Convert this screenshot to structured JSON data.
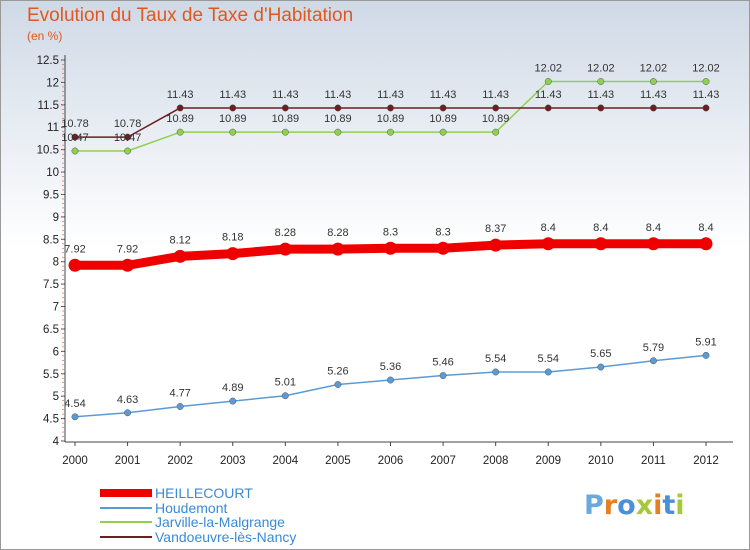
{
  "header": {
    "title": "Evolution du Taux de Taxe d'Habitation",
    "unit": "(en %)"
  },
  "logo": {
    "letters": [
      "P",
      "r",
      "o",
      "x",
      "i",
      "t",
      "i"
    ],
    "colors": [
      "#6aa9dc",
      "#e67e22",
      "#4a90d9",
      "#a5c93a",
      "#e67e22",
      "#4a90d9",
      "#a5c93a"
    ]
  },
  "chart_data": {
    "type": "line",
    "title": "Evolution du Taux de Taxe d'Habitation",
    "ylabel": "(en %)",
    "xlabel": "",
    "x": [
      "2000",
      "2001",
      "2002",
      "2003",
      "2004",
      "2005",
      "2006",
      "2007",
      "2008",
      "2009",
      "2010",
      "2011",
      "2012"
    ],
    "ylim": [
      4,
      12.5
    ],
    "yticks": [
      "4",
      "4.5",
      "5",
      "5.5",
      "6",
      "6.5",
      "7",
      "7.5",
      "8",
      "8.5",
      "9",
      "9.5",
      "10",
      "10.5",
      "11",
      "11.5",
      "12",
      "12.5"
    ],
    "grid": false,
    "legend_position": "bottom-left",
    "series": [
      {
        "name": "HEILLECOURT",
        "color": "#ee0000",
        "values": [
          7.92,
          7.92,
          8.12,
          8.18,
          8.28,
          8.28,
          8.3,
          8.3,
          8.37,
          8.4,
          8.4,
          8.4,
          8.4
        ],
        "labels": [
          "7.92",
          "7.92",
          "8.12",
          "8.18",
          "8.28",
          "8.28",
          "8.3",
          "8.3",
          "8.37",
          "8.4",
          "8.4",
          "8.4",
          "8.4"
        ]
      },
      {
        "name": "Houdemont",
        "color": "#5b9bd5",
        "values": [
          4.54,
          4.63,
          4.77,
          4.89,
          5.01,
          5.26,
          5.36,
          5.46,
          5.54,
          5.54,
          5.65,
          5.79,
          5.91
        ],
        "labels": [
          "4.54",
          "4.63",
          "4.77",
          "4.89",
          "5.01",
          "5.26",
          "5.36",
          "5.46",
          "5.54",
          "5.54",
          "5.65",
          "5.79",
          "5.91"
        ]
      },
      {
        "name": "Jarville-la-Malgrange",
        "color": "#8fd14f",
        "values": [
          10.47,
          10.47,
          10.89,
          10.89,
          10.89,
          10.89,
          10.89,
          10.89,
          10.89,
          12.02,
          12.02,
          12.02,
          12.02
        ],
        "labels": [
          "10.47",
          "10.47",
          "10.89",
          "10.89",
          "10.89",
          "10.89",
          "10.89",
          "10.89",
          "10.89",
          "12.02",
          "12.02",
          "12.02",
          "12.02"
        ]
      },
      {
        "name": "Vandoeuvre-lès-Nancy",
        "color": "#6b1f1f",
        "values": [
          10.78,
          10.78,
          11.43,
          11.43,
          11.43,
          11.43,
          11.43,
          11.43,
          11.43,
          11.43,
          11.43,
          11.43,
          11.43
        ],
        "labels": [
          "10.78",
          "10.78",
          "11.43",
          "11.43",
          "11.43",
          "11.43",
          "11.43",
          "11.43",
          "11.43",
          "11.43",
          "11.43",
          "11.43",
          "11.43"
        ]
      }
    ]
  }
}
